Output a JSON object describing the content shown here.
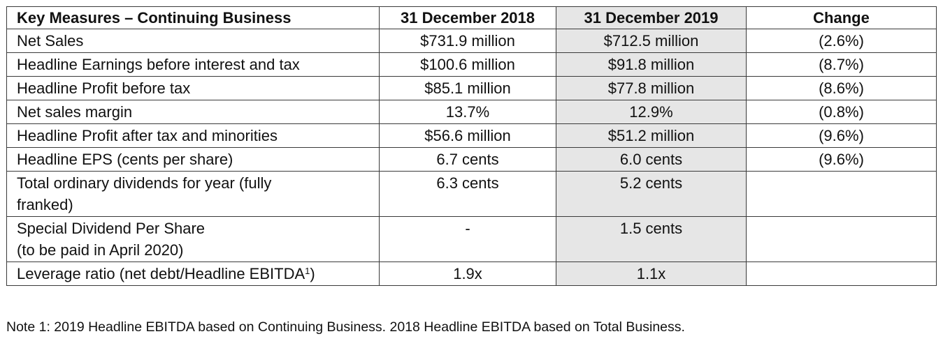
{
  "table": {
    "headers": [
      "Key Measures – Continuing Business",
      "31 December 2018",
      "31 December 2019",
      "Change"
    ],
    "rows": [
      {
        "measure": "Net Sales",
        "y2018": "$731.9 million",
        "y2019": "$712.5 million",
        "change": "(2.6%)"
      },
      {
        "measure": "Headline Earnings before interest and tax",
        "y2018": "$100.6 million",
        "y2019": "$91.8 million",
        "change": "(8.7%)"
      },
      {
        "measure": "Headline Profit before tax",
        "y2018": "$85.1 million",
        "y2019": "$77.8 million",
        "change": "(8.6%)"
      },
      {
        "measure": "Net sales margin",
        "y2018": "13.7%",
        "y2019": "12.9%",
        "change": "(0.8%)"
      },
      {
        "measure": "Headline Profit after tax and minorities",
        "y2018": "$56.6 million",
        "y2019": "$51.2 million",
        "change": "(9.6%)"
      },
      {
        "measure": "Headline EPS (cents per share)",
        "y2018": "6.7 cents",
        "y2019": "6.0 cents",
        "change": "(9.6%)"
      },
      {
        "measure_line1": "Total ordinary dividends for year (fully",
        "measure_line2": "franked)",
        "y2018": "6.3 cents",
        "y2019": "5.2 cents",
        "change": ""
      },
      {
        "measure_line1": "Special Dividend Per Share",
        "measure_line2": "(to be paid in April 2020)",
        "y2018": "-",
        "y2019": "1.5 cents",
        "change": ""
      },
      {
        "measure": "Leverage ratio (net debt/Headline EBITDA",
        "measure_sup": "1",
        "measure_suffix": ")",
        "y2018": "1.9x",
        "y2019": "1.1x",
        "change": ""
      }
    ]
  },
  "note": "Note 1: 2019 Headline EBITDA based on Continuing Business. 2018 Headline EBITDA based on Total Business.",
  "colors": {
    "highlight_column": "#e6e6e6",
    "border": "#3a3a3a",
    "text": "#111111"
  }
}
